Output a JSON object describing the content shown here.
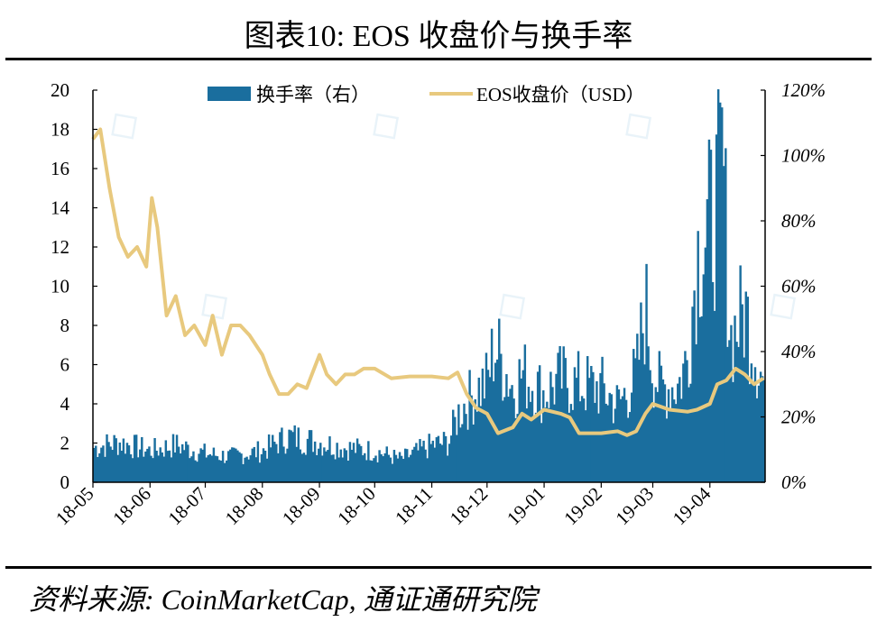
{
  "title": "图表10:  EOS 收盘价与换手率",
  "source": "资料来源:  CoinMarketCap,  通证通研究院",
  "colors": {
    "turnover": "#1a6e9e",
    "price": "#e8c97e",
    "axis": "#000000"
  },
  "chart_data": {
    "type": "bar+line",
    "title": "",
    "legend_position": "top-center",
    "grid": false,
    "x_tick_labels": [
      "18-05",
      "18-06",
      "18-07",
      "18-08",
      "18-09",
      "18-10",
      "18-11",
      "18-12",
      "19-01",
      "19-02",
      "19-03",
      "19-04"
    ],
    "y_left": {
      "label": "",
      "range": [
        0,
        20
      ],
      "ticks": [
        "0",
        "2",
        "4",
        "6",
        "8",
        "10",
        "12",
        "14",
        "16",
        "18",
        "20"
      ]
    },
    "y_right": {
      "label": "",
      "range": [
        0,
        120
      ],
      "unit": "%",
      "ticks": [
        "0%",
        "20%",
        "40%",
        "60%",
        "80%",
        "100%",
        "120%"
      ]
    },
    "series": [
      {
        "name": "换手率（右）",
        "type": "bar",
        "axis": "right",
        "unit": "%",
        "x": [
          "2018-05-01",
          "2018-05-15",
          "2018-06-01",
          "2018-06-15",
          "2018-07-01",
          "2018-07-15",
          "2018-08-01",
          "2018-08-15",
          "2018-09-01",
          "2018-09-15",
          "2018-10-01",
          "2018-10-15",
          "2018-11-01",
          "2018-11-10",
          "2018-11-16",
          "2018-11-25",
          "2018-12-01",
          "2018-12-05",
          "2018-12-15",
          "2018-12-20",
          "2019-01-01",
          "2019-01-10",
          "2019-01-20",
          "2019-02-01",
          "2019-02-10",
          "2019-02-20",
          "2019-02-25",
          "2019-03-01",
          "2019-03-05",
          "2019-03-15",
          "2019-03-20",
          "2019-03-25",
          "2019-04-01",
          "2019-04-05",
          "2019-04-08",
          "2019-04-12",
          "2019-04-20",
          "2019-04-30"
        ],
        "values": [
          12,
          14,
          11,
          13,
          10,
          9,
          11,
          16,
          14,
          12,
          11,
          8,
          13,
          14,
          25,
          32,
          35,
          48,
          33,
          38,
          31,
          36,
          34,
          33,
          27,
          37,
          62,
          40,
          33,
          34,
          44,
          80,
          90,
          98,
          113,
          50,
          60,
          35
        ]
      },
      {
        "name": "EOS收盘价（USD）",
        "type": "line",
        "axis": "left",
        "unit": "USD",
        "x": [
          "2018-05-01",
          "2018-05-05",
          "2018-05-10",
          "2018-05-15",
          "2018-05-20",
          "2018-05-25",
          "2018-05-30",
          "2018-06-02",
          "2018-06-05",
          "2018-06-10",
          "2018-06-15",
          "2018-06-20",
          "2018-06-25",
          "2018-07-01",
          "2018-07-05",
          "2018-07-10",
          "2018-07-15",
          "2018-07-20",
          "2018-07-25",
          "2018-08-01",
          "2018-08-05",
          "2018-08-10",
          "2018-08-15",
          "2018-08-20",
          "2018-08-25",
          "2018-09-01",
          "2018-09-05",
          "2018-09-10",
          "2018-09-15",
          "2018-09-20",
          "2018-09-25",
          "2018-10-01",
          "2018-10-10",
          "2018-10-20",
          "2018-11-01",
          "2018-11-10",
          "2018-11-15",
          "2018-11-20",
          "2018-11-25",
          "2018-12-01",
          "2018-12-07",
          "2018-12-15",
          "2018-12-20",
          "2018-12-25",
          "2019-01-01",
          "2019-01-10",
          "2019-01-15",
          "2019-01-20",
          "2019-02-01",
          "2019-02-10",
          "2019-02-15",
          "2019-02-20",
          "2019-02-25",
          "2019-03-01",
          "2019-03-10",
          "2019-03-20",
          "2019-03-25",
          "2019-04-01",
          "2019-04-05",
          "2019-04-10",
          "2019-04-15",
          "2019-04-20",
          "2019-04-25",
          "2019-04-30"
        ],
        "values": [
          17.5,
          18.0,
          15.0,
          12.5,
          11.5,
          12.0,
          11.0,
          14.5,
          13.0,
          8.5,
          9.5,
          7.5,
          8.0,
          7.0,
          8.5,
          6.5,
          8.0,
          8.0,
          7.5,
          6.5,
          5.5,
          4.5,
          4.5,
          5.0,
          4.8,
          6.5,
          5.5,
          5.0,
          5.5,
          5.5,
          5.8,
          5.8,
          5.3,
          5.4,
          5.4,
          5.3,
          5.6,
          4.5,
          3.8,
          3.5,
          2.5,
          2.8,
          3.5,
          3.2,
          3.7,
          3.5,
          3.3,
          2.5,
          2.5,
          2.6,
          2.4,
          2.6,
          3.5,
          4.0,
          3.7,
          3.6,
          3.7,
          4.0,
          5.0,
          5.2,
          5.8,
          5.5,
          5.0,
          5.3
        ]
      }
    ]
  }
}
